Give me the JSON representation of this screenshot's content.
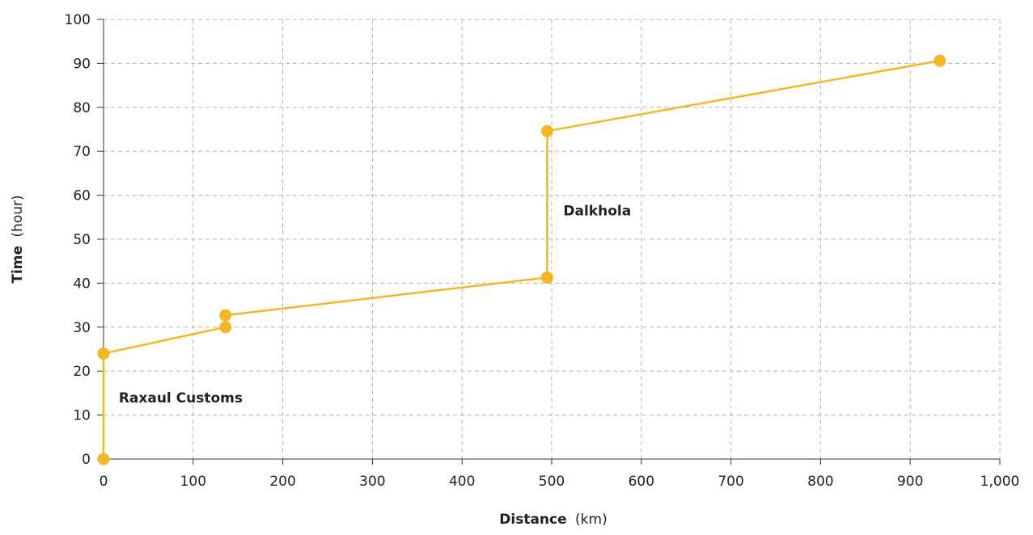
{
  "chart_data": {
    "type": "line",
    "xlabel": {
      "bold": "Distance",
      "unit": "(km)"
    },
    "ylabel": {
      "bold": "Time",
      "unit": "(hour)"
    },
    "xlim": [
      0,
      1000
    ],
    "ylim": [
      0,
      100
    ],
    "x_ticks": [
      0,
      100,
      200,
      300,
      400,
      500,
      600,
      700,
      800,
      900,
      1000
    ],
    "x_tick_labels": [
      "0",
      "100",
      "200",
      "300",
      "400",
      "500",
      "600",
      "700",
      "800",
      "900",
      "1,000"
    ],
    "y_ticks": [
      0,
      10,
      20,
      30,
      40,
      50,
      60,
      70,
      80,
      90,
      100
    ],
    "y_tick_labels": [
      "0",
      "10",
      "20",
      "30",
      "40",
      "50",
      "60",
      "70",
      "80",
      "90",
      "100"
    ],
    "grid": true,
    "series": [
      {
        "color": "#F5B625",
        "x": [
          0,
          0,
          136,
          136,
          495,
          495,
          933
        ],
        "y": [
          0,
          24,
          30,
          32.7,
          41.3,
          74.6,
          90.6
        ]
      }
    ],
    "annotations": [
      {
        "text": "Raxaul Customs",
        "x": 17,
        "y": 14
      },
      {
        "text": "Dalkhola",
        "x": 513,
        "y": 56.5
      }
    ]
  }
}
